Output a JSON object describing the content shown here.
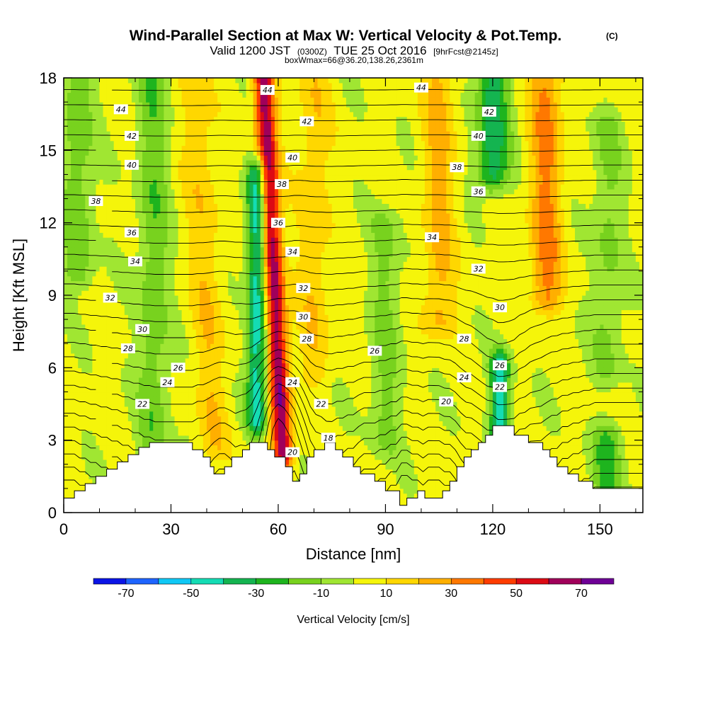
{
  "chart_data": {
    "type": "heatmap",
    "title": "Wind-Parallel Section at Max W: Vertical Velocity & Pot.Temp.",
    "title_mark": "(C)",
    "subtitle_parts": [
      "Valid 1200 JST",
      "(0300Z)",
      "TUE 25 Oct 2016",
      "[9hrFcst@2145z]"
    ],
    "subtitle2": "boxWmax=66@36.20,138.26,2361m",
    "xlabel": "Distance [nm]",
    "ylabel": "Height [Kft MSL]",
    "xlim": [
      0,
      162
    ],
    "ylim": [
      0,
      18
    ],
    "x_ticks": [
      0,
      30,
      60,
      90,
      120,
      150
    ],
    "y_ticks": [
      0,
      3,
      6,
      9,
      12,
      15,
      18
    ],
    "colorbar": {
      "label": "Vertical Velocity [cm/s]",
      "tick_labels": [
        "-70",
        "-50",
        "-30",
        "-10",
        "10",
        "30",
        "50",
        "70"
      ],
      "tick_values": [
        -70,
        -50,
        -30,
        -10,
        10,
        30,
        50,
        70
      ],
      "bounds": [
        -80,
        -70,
        -60,
        -50,
        -40,
        -30,
        -20,
        -10,
        0,
        10,
        20,
        30,
        40,
        50,
        60,
        70,
        80
      ],
      "colors": [
        "#0a14e6",
        "#1e64ff",
        "#0fc8f5",
        "#14dcb4",
        "#14b450",
        "#1eb41e",
        "#78d21e",
        "#a0e632",
        "#f5f50a",
        "#ffd700",
        "#ffaf00",
        "#ff7800",
        "#ff3c00",
        "#dc0a14",
        "#a0005a",
        "#6e0096"
      ]
    },
    "vertical_velocity_features": [
      {
        "kind": "updraft",
        "x_center": 59,
        "z_bottom": 2.5,
        "z_top": 18,
        "peak_cm_s": 66
      },
      {
        "kind": "downdraft",
        "x_center": 54,
        "z_bottom": 4,
        "z_top": 14,
        "peak_cm_s": -50
      },
      {
        "kind": "downdraft",
        "x_center": 122,
        "z_bottom": 3.5,
        "z_top": 6,
        "peak_cm_s": -50
      },
      {
        "kind": "downdraft",
        "x_center": 120,
        "z_bottom": 14,
        "z_top": 18,
        "peak_cm_s": -40
      },
      {
        "kind": "updraft",
        "x_center": 135,
        "z_bottom": 9,
        "z_top": 18,
        "peak_cm_s": 30
      },
      {
        "kind": "downdraft",
        "x_center": 25,
        "z_bottom": 3,
        "z_top": 18,
        "peak_cm_s": -20
      },
      {
        "kind": "downdraft",
        "x_center": 4,
        "z_bottom": 10,
        "z_top": 18,
        "peak_cm_s": -20
      },
      {
        "kind": "downdraft",
        "x_center": 90,
        "z_bottom": 3,
        "z_top": 12,
        "peak_cm_s": -15
      },
      {
        "kind": "downdraft",
        "x_center": 152,
        "z_bottom": 6,
        "z_top": 16,
        "peak_cm_s": -15
      },
      {
        "kind": "downdraft",
        "x_center": 152,
        "z_bottom": 1,
        "z_top": 3,
        "peak_cm_s": -25
      },
      {
        "kind": "updraft",
        "x_center": 105,
        "z_bottom": 8,
        "z_top": 18,
        "peak_cm_s": 20
      },
      {
        "kind": "updraft",
        "x_center": 40,
        "z_bottom": 3,
        "z_top": 18,
        "peak_cm_s": 15
      },
      {
        "kind": "updraft",
        "x_center": 70,
        "z_bottom": 6,
        "z_top": 18,
        "peak_cm_s": 15
      }
    ],
    "terrain_kft": [
      [
        0,
        0.6
      ],
      [
        3,
        0.6
      ],
      [
        3,
        0.9
      ],
      [
        6,
        0.9
      ],
      [
        6,
        1.2
      ],
      [
        9,
        1.2
      ],
      [
        9,
        1.5
      ],
      [
        12,
        1.5
      ],
      [
        12,
        1.8
      ],
      [
        15,
        1.8
      ],
      [
        15,
        2.1
      ],
      [
        18,
        2.1
      ],
      [
        18,
        2.4
      ],
      [
        21,
        2.4
      ],
      [
        21,
        2.7
      ],
      [
        24,
        2.7
      ],
      [
        24,
        2.9
      ],
      [
        36,
        2.9
      ],
      [
        36,
        2.6
      ],
      [
        39,
        2.6
      ],
      [
        39,
        2.3
      ],
      [
        41,
        2.3
      ],
      [
        41,
        1.9
      ],
      [
        42,
        1.9
      ],
      [
        42,
        1.6
      ],
      [
        45,
        1.6
      ],
      [
        45,
        1.9
      ],
      [
        47,
        1.9
      ],
      [
        47,
        2.3
      ],
      [
        50,
        2.3
      ],
      [
        50,
        2.6
      ],
      [
        52,
        2.6
      ],
      [
        52,
        2.9
      ],
      [
        57,
        2.9
      ],
      [
        57,
        2.6
      ],
      [
        59,
        2.6
      ],
      [
        59,
        2.3
      ],
      [
        62,
        2.3
      ],
      [
        62,
        1.9
      ],
      [
        64,
        1.9
      ],
      [
        64,
        1.3
      ],
      [
        66,
        1.3
      ],
      [
        66,
        1.6
      ],
      [
        68,
        1.6
      ],
      [
        68,
        2.3
      ],
      [
        70,
        2.3
      ],
      [
        70,
        2.6
      ],
      [
        73,
        2.6
      ],
      [
        73,
        2.9
      ],
      [
        76,
        2.9
      ],
      [
        76,
        2.6
      ],
      [
        78,
        2.6
      ],
      [
        78,
        2.3
      ],
      [
        81,
        2.3
      ],
      [
        81,
        1.9
      ],
      [
        83,
        1.9
      ],
      [
        83,
        1.6
      ],
      [
        87,
        1.6
      ],
      [
        87,
        1.3
      ],
      [
        90,
        1.3
      ],
      [
        90,
        0.9
      ],
      [
        94,
        0.9
      ],
      [
        94,
        0.3
      ],
      [
        96,
        0.3
      ],
      [
        96,
        0.6
      ],
      [
        99,
        0.6
      ],
      [
        99,
        0.9
      ],
      [
        101,
        0.9
      ],
      [
        101,
        0.6
      ],
      [
        106,
        0.6
      ],
      [
        106,
        0.9
      ],
      [
        108,
        0.9
      ],
      [
        108,
        1.3
      ],
      [
        110,
        1.3
      ],
      [
        110,
        1.9
      ],
      [
        112,
        1.9
      ],
      [
        112,
        2.3
      ],
      [
        114,
        2.3
      ],
      [
        114,
        2.6
      ],
      [
        116,
        2.6
      ],
      [
        116,
        2.9
      ],
      [
        118,
        2.9
      ],
      [
        118,
        3.2
      ],
      [
        120,
        3.2
      ],
      [
        120,
        3.6
      ],
      [
        126,
        3.6
      ],
      [
        126,
        3.2
      ],
      [
        130,
        3.2
      ],
      [
        130,
        2.9
      ],
      [
        134,
        2.9
      ],
      [
        134,
        2.6
      ],
      [
        136,
        2.6
      ],
      [
        136,
        2.3
      ],
      [
        138,
        2.3
      ],
      [
        138,
        1.9
      ],
      [
        141,
        1.9
      ],
      [
        141,
        1.6
      ],
      [
        144,
        1.6
      ],
      [
        144,
        1.3
      ],
      [
        148,
        1.3
      ],
      [
        148,
        1.0
      ],
      [
        162,
        1.0
      ]
    ],
    "theta_contours": [
      18,
      20,
      22,
      24,
      26,
      28,
      30,
      32,
      34,
      36,
      38,
      40,
      42,
      44
    ],
    "contour_labels": [
      {
        "text": "44",
        "x": 16,
        "z": 16.7
      },
      {
        "text": "42",
        "x": 19,
        "z": 15.6
      },
      {
        "text": "40",
        "x": 19,
        "z": 14.4
      },
      {
        "text": "38",
        "x": 9,
        "z": 12.9
      },
      {
        "text": "36",
        "x": 19,
        "z": 11.6
      },
      {
        "text": "34",
        "x": 20,
        "z": 10.4
      },
      {
        "text": "32",
        "x": 13,
        "z": 8.9
      },
      {
        "text": "30",
        "x": 22,
        "z": 7.6
      },
      {
        "text": "28",
        "x": 18,
        "z": 6.8
      },
      {
        "text": "26",
        "x": 32,
        "z": 6.0
      },
      {
        "text": "24",
        "x": 29,
        "z": 5.4
      },
      {
        "text": "22",
        "x": 22,
        "z": 4.5
      },
      {
        "text": "44",
        "x": 57,
        "z": 17.5
      },
      {
        "text": "42",
        "x": 68,
        "z": 16.2
      },
      {
        "text": "40",
        "x": 64,
        "z": 14.7
      },
      {
        "text": "38",
        "x": 61,
        "z": 13.6
      },
      {
        "text": "36",
        "x": 60,
        "z": 12.0
      },
      {
        "text": "34",
        "x": 64,
        "z": 10.8
      },
      {
        "text": "32",
        "x": 67,
        "z": 9.3
      },
      {
        "text": "30",
        "x": 67,
        "z": 8.1
      },
      {
        "text": "28",
        "x": 68,
        "z": 7.2
      },
      {
        "text": "26",
        "x": 87,
        "z": 6.7
      },
      {
        "text": "24",
        "x": 64,
        "z": 5.4
      },
      {
        "text": "22",
        "x": 72,
        "z": 4.5
      },
      {
        "text": "20",
        "x": 64,
        "z": 2.5
      },
      {
        "text": "18",
        "x": 74,
        "z": 3.1
      },
      {
        "text": "44",
        "x": 100,
        "z": 17.6
      },
      {
        "text": "42",
        "x": 119,
        "z": 16.6
      },
      {
        "text": "40",
        "x": 116,
        "z": 15.6
      },
      {
        "text": "38",
        "x": 110,
        "z": 14.3
      },
      {
        "text": "36",
        "x": 116,
        "z": 13.3
      },
      {
        "text": "34",
        "x": 103,
        "z": 11.4
      },
      {
        "text": "32",
        "x": 116,
        "z": 10.1
      },
      {
        "text": "30",
        "x": 122,
        "z": 8.5
      },
      {
        "text": "28",
        "x": 112,
        "z": 7.2
      },
      {
        "text": "26",
        "x": 122,
        "z": 6.1
      },
      {
        "text": "24",
        "x": 112,
        "z": 5.6
      },
      {
        "text": "22",
        "x": 122,
        "z": 5.2
      },
      {
        "text": "20",
        "x": 107,
        "z": 4.6
      }
    ]
  }
}
